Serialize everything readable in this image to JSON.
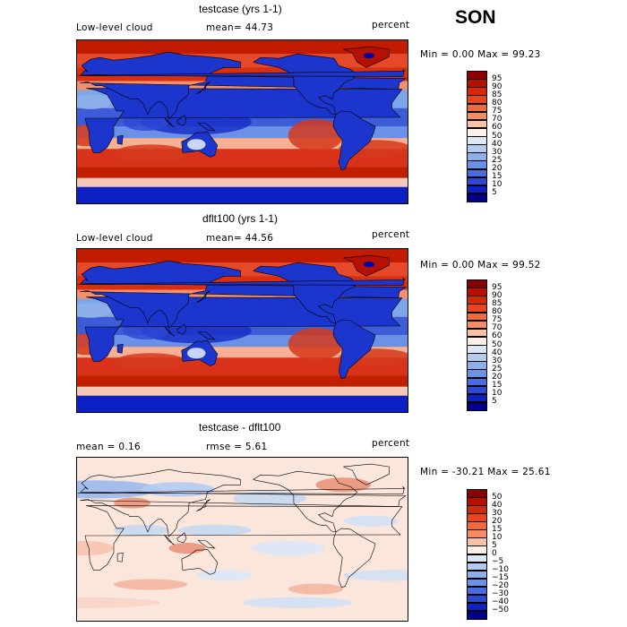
{
  "season": "SON",
  "panels": [
    {
      "title": "testcase (yrs 1-1)",
      "left_label": "Low-level cloud",
      "mid_label": "mean=  44.73",
      "units": "percent",
      "minmax": "Min =   0.00 Max =  99.23",
      "kind": "abs",
      "colorbar": {
        "labels": [
          "95",
          "90",
          "85",
          "80",
          "75",
          "70",
          "60",
          "50",
          "40",
          "30",
          "25",
          "20",
          "15",
          "10",
          "5"
        ],
        "colors": [
          "#8b0000",
          "#b51000",
          "#d52a0a",
          "#e8451c",
          "#f26a3c",
          "#f78c64",
          "#fcc0a4",
          "#fef0e6",
          "#dce7f8",
          "#b4cbef",
          "#8eb0ea",
          "#6b91e6",
          "#4b6be0",
          "#2f48d4",
          "#0d20c3",
          "#00008b"
        ]
      }
    },
    {
      "title": "dflt100 (yrs 1-1)",
      "left_label": "Low-level cloud",
      "mid_label": "mean=  44.56",
      "units": "percent",
      "minmax": "Min =   0.00 Max =  99.52",
      "kind": "abs",
      "colorbar": {
        "labels": [
          "95",
          "90",
          "85",
          "80",
          "75",
          "70",
          "60",
          "50",
          "40",
          "30",
          "25",
          "20",
          "15",
          "10",
          "5"
        ],
        "colors": [
          "#8b0000",
          "#b51000",
          "#d52a0a",
          "#e8451c",
          "#f26a3c",
          "#f78c64",
          "#fcc0a4",
          "#fef0e6",
          "#dce7f8",
          "#b4cbef",
          "#8eb0ea",
          "#6b91e6",
          "#4b6be0",
          "#2f48d4",
          "#0d20c3",
          "#00008b"
        ]
      }
    },
    {
      "title": "testcase - dflt100",
      "left_label": "mean =   0.16",
      "mid_label": "rmse =   5.61",
      "units": "percent",
      "minmax": "Min = -30.21 Max =  25.61",
      "kind": "diff",
      "colorbar": {
        "labels": [
          "50",
          "40",
          "30",
          "20",
          "15",
          "10",
          "5",
          "0",
          "−5",
          "−10",
          "−15",
          "−20",
          "−30",
          "−40",
          "−50"
        ],
        "colors": [
          "#8b0000",
          "#b51000",
          "#d52a0a",
          "#e8451c",
          "#f26a3c",
          "#f78c64",
          "#fcc0a4",
          "#fef0e6",
          "#dce7f8",
          "#b4cbef",
          "#8eb0ea",
          "#6b91e6",
          "#4b6be0",
          "#2f48d4",
          "#0d20c3",
          "#00008b"
        ]
      }
    }
  ]
}
